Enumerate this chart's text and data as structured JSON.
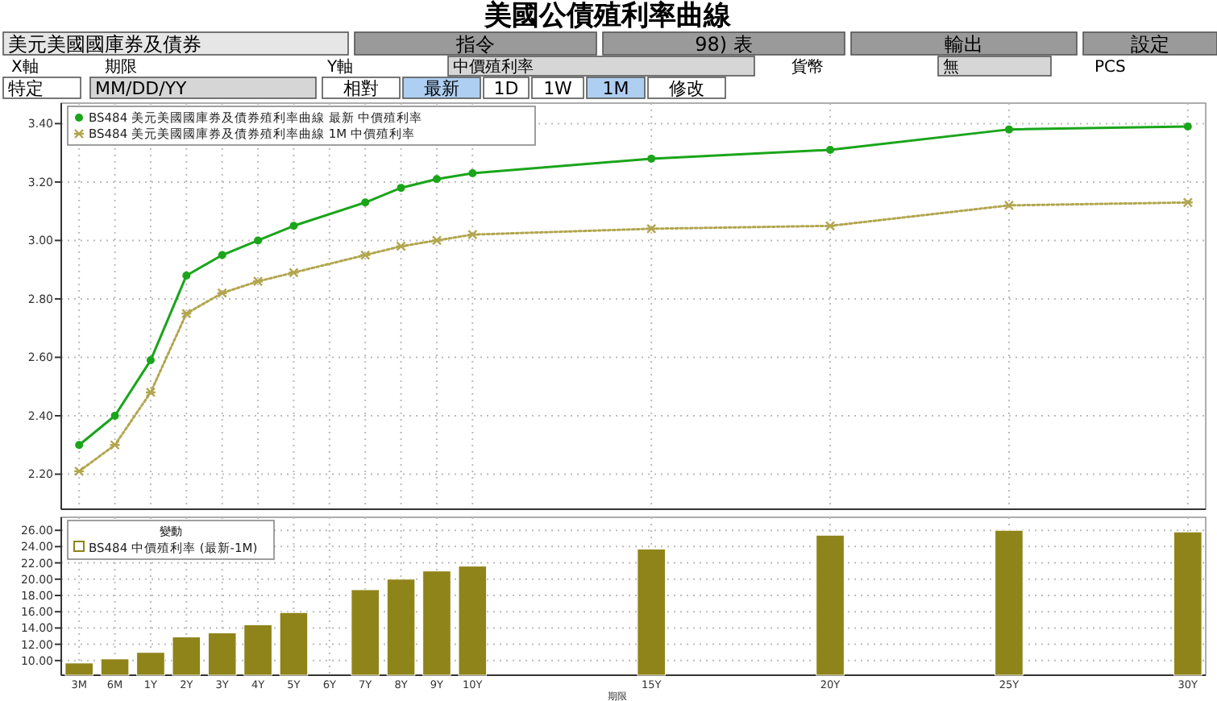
{
  "chart_data": [
    {
      "type": "line",
      "title": "美國公債殖利率曲線",
      "annotations": [
        "美元美國國庫券及債券",
        "指令",
        "98) 表",
        "輸出",
        "設定",
        "X軸",
        "期限",
        "Y軸",
        "中價殖利率",
        "貨幣",
        "無",
        "PCS",
        "特定",
        "MM/DD/YY",
        "相對",
        "最新",
        "1D",
        "1W",
        "1M",
        "修改"
      ],
      "categories": [
        null,
        null,
        null,
        null,
        null,
        null,
        null,
        null,
        null,
        null,
        null,
        null,
        null,
        null,
        null,
        null,
        null,
        null,
        null,
        null,
        null,
        null,
        null,
        null,
        null,
        null,
        null,
        null,
        null,
        null,
        null,
        null
      ],
      "series": [
        {
          "name": "BS484 美元美國國庫券及債券殖利率曲線 最新 中價殖利率",
          "color": "#1aa51a",
          "marker": "circle",
          "line_style": "solid",
          "values": [
            2.3,
            2.4,
            2.59,
            2.88,
            2.95,
            3.0,
            3.05,
            null,
            3.13,
            3.18,
            3.21,
            3.23,
            null,
            null,
            null,
            null,
            3.28,
            null,
            null,
            null,
            null,
            3.31,
            null,
            null,
            null,
            null,
            3.38,
            null,
            null,
            null,
            null,
            3.39
          ]
        },
        {
          "name": "BS484 美元美國國庫券及債券殖利率曲線 1M 中價殖利率",
          "color": "#b2a64e",
          "marker": "cross",
          "line_style": "dotted",
          "values": [
            2.21,
            2.3,
            2.48,
            2.75,
            2.82,
            2.86,
            2.89,
            null,
            2.95,
            2.98,
            3.0,
            3.02,
            null,
            null,
            null,
            null,
            3.04,
            null,
            null,
            null,
            null,
            3.05,
            null,
            null,
            null,
            null,
            3.12,
            null,
            null,
            null,
            null,
            3.13
          ]
        }
      ],
      "ylim": [
        2.08,
        3.47
      ],
      "yticks": [
        {
          "value": 2.2,
          "label": "2.20"
        },
        {
          "value": 2.4,
          "label": "2.40"
        },
        {
          "value": 2.6,
          "label": "2.60"
        },
        {
          "value": 2.8,
          "label": "2.80"
        },
        {
          "value": 3.0,
          "label": "3.00"
        },
        {
          "value": 3.2,
          "label": "3.20"
        },
        {
          "value": 3.4,
          "label": "3.40"
        }
      ],
      "grid": true,
      "legend": "top left",
      "tick_labels": "y"
    },
    {
      "type": "bar",
      "xlabel": "期限",
      "legend_title": "變動",
      "categories": [
        "3M",
        "6M",
        "1Y",
        "2Y",
        "3Y",
        "4Y",
        "5Y",
        "6Y",
        "7Y",
        "8Y",
        "9Y",
        "10Y",
        null,
        null,
        null,
        null,
        "15Y",
        null,
        null,
        null,
        null,
        "20Y",
        null,
        null,
        null,
        null,
        "25Y",
        null,
        null,
        null,
        null,
        "30Y"
      ],
      "series": [
        {
          "name": "BS484 中價殖利率 (最新-1M)",
          "color": "#8f8419",
          "values": [
            9.7,
            10.2,
            11.0,
            12.9,
            13.4,
            14.4,
            15.9,
            null,
            18.7,
            20.0,
            21.0,
            21.6,
            null,
            null,
            null,
            null,
            23.7,
            null,
            null,
            null,
            null,
            25.4,
            null,
            null,
            null,
            null,
            26.0,
            null,
            null,
            null,
            null,
            25.8
          ]
        }
      ],
      "ylim": [
        8.2,
        27.6
      ],
      "yticks": [
        {
          "value": 10,
          "label": "10.00"
        },
        {
          "value": 12,
          "label": "12.00"
        },
        {
          "value": 14,
          "label": "14.00"
        },
        {
          "value": 16,
          "label": "16.00"
        },
        {
          "value": 18,
          "label": "18.00"
        },
        {
          "value": 20,
          "label": "20.00"
        },
        {
          "value": 22,
          "label": "22.00"
        },
        {
          "value": 24,
          "label": "24.00"
        },
        {
          "value": 26,
          "label": "26.00"
        }
      ],
      "grid": true,
      "legend": "top left"
    }
  ]
}
